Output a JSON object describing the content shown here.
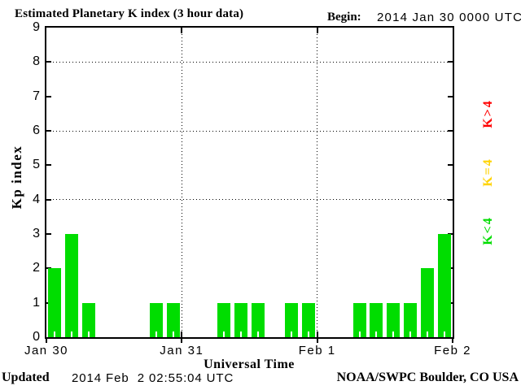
{
  "header": {
    "title": "Estimated Planetary K index (3 hour data)",
    "begin_label": "Begin:",
    "begin_value": "2014 Jan 30 0000 UTC"
  },
  "footer": {
    "updated_label": "Updated",
    "updated_value": "2014 Feb  2 02:55:04 UTC",
    "source": "NOAA/SWPC Boulder, CO USA"
  },
  "legend": {
    "position": "right",
    "items": [
      {
        "label": "K>4",
        "color": "#ff0000"
      },
      {
        "label": "K=4",
        "color": "#ffd300"
      },
      {
        "label": "K<4",
        "color": "#00dd00"
      }
    ]
  },
  "chart_data": {
    "type": "bar",
    "title": "Estimated Planetary K index (3 hour data)",
    "xlabel": "Universal Time",
    "ylabel": "Kp index",
    "ylim": [
      0,
      9
    ],
    "yticks": [
      0,
      1,
      2,
      3,
      4,
      5,
      6,
      7,
      8,
      9
    ],
    "ygridlines_dotted": [
      4,
      6,
      8
    ],
    "grid": "dotted",
    "bin_hours": 3,
    "bins_per_day": 8,
    "x_day_tick_labels": [
      "Jan 30",
      "Jan 31",
      "Feb 1",
      "Feb 2"
    ],
    "series": [
      {
        "day": "Jan 30",
        "values": [
          2,
          3,
          1,
          0,
          0,
          0,
          1,
          1
        ]
      },
      {
        "day": "Jan 31",
        "values": [
          0,
          0,
          1,
          1,
          1,
          0,
          1,
          1
        ]
      },
      {
        "day": "Feb 1",
        "values": [
          0,
          0,
          1,
          1,
          1,
          1,
          2,
          3
        ]
      }
    ],
    "bar_color_rule": {
      "lt4": "#00dd00",
      "eq4": "#ffd300",
      "gt4": "#ff0000"
    }
  }
}
